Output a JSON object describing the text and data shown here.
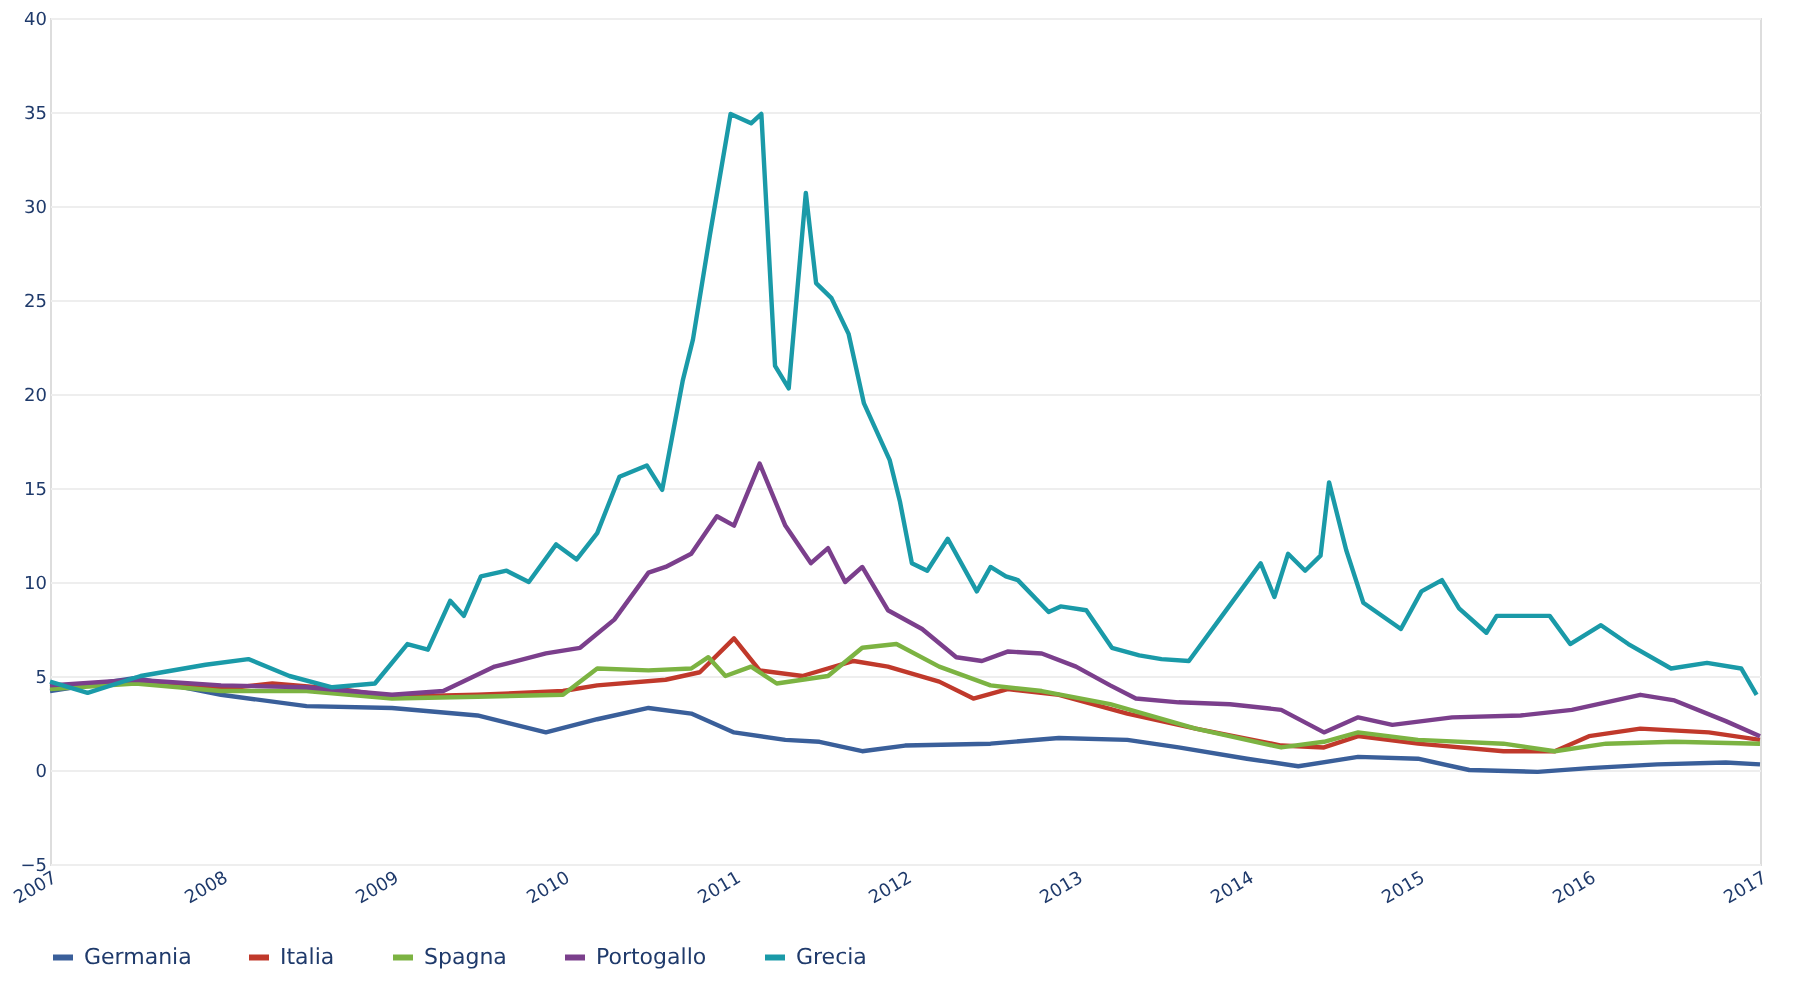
{
  "chart_data": {
    "type": "line",
    "xlim": [
      2007,
      2017
    ],
    "xticks": [
      2007,
      2008,
      2009,
      2010,
      2011,
      2012,
      2013,
      2014,
      2015,
      2016,
      2017
    ],
    "ylim": [
      -5,
      40
    ],
    "yticks": [
      -5,
      0,
      5,
      10,
      15,
      20,
      25,
      30,
      35,
      40
    ],
    "grid": "y",
    "legend": "bottom",
    "marker": "none",
    "line_style": "solid",
    "series": [
      {
        "name": "Germania",
        "color": "#3a5f9a",
        "x": [
          2007,
          2007.5,
          2008,
          2008.5,
          2009,
          2009.5,
          2009.9,
          2010.2,
          2010.5,
          2010.75,
          2011,
          2011.3,
          2011.5,
          2011.75,
          2012,
          2012.5,
          2012.9,
          2013.3,
          2013.6,
          2014,
          2014.3,
          2014.65,
          2015,
          2015.3,
          2015.7,
          2016,
          2016.4,
          2016.8,
          2017
        ],
        "values": [
          4.2,
          4.9,
          4.0,
          3.4,
          3.3,
          2.9,
          2.0,
          2.7,
          3.3,
          3.0,
          2.0,
          1.6,
          1.5,
          1.0,
          1.3,
          1.4,
          1.7,
          1.6,
          1.2,
          0.6,
          0.2,
          0.7,
          0.6,
          0.0,
          -0.1,
          0.1,
          0.3,
          0.4,
          0.3
        ]
      },
      {
        "name": "Italia",
        "color": "#c0392b",
        "x": [
          2007,
          2007.5,
          2008,
          2008.3,
          2008.7,
          2009,
          2009.5,
          2010,
          2010.2,
          2010.6,
          2010.8,
          2011,
          2011.15,
          2011.4,
          2011.7,
          2011.9,
          2012.2,
          2012.4,
          2012.6,
          2012.9,
          2013.3,
          2013.7,
          2014.2,
          2014.45,
          2014.65,
          2015,
          2015.5,
          2015.8,
          2016,
          2016.3,
          2016.7,
          2017
        ],
        "values": [
          4.4,
          4.7,
          4.3,
          4.6,
          4.3,
          3.9,
          4.0,
          4.2,
          4.5,
          4.8,
          5.2,
          7.0,
          5.3,
          5.0,
          5.8,
          5.5,
          4.7,
          3.8,
          4.3,
          4.0,
          3.0,
          2.2,
          1.3,
          1.2,
          1.8,
          1.4,
          1.0,
          1.0,
          1.8,
          2.2,
          2.0,
          1.6
        ]
      },
      {
        "name": "Spagna",
        "color": "#7cb342",
        "x": [
          2007,
          2007.5,
          2008,
          2008.5,
          2009,
          2009.5,
          2010,
          2010.2,
          2010.5,
          2010.75,
          2010.85,
          2010.95,
          2011.1,
          2011.25,
          2011.55,
          2011.75,
          2011.95,
          2012.2,
          2012.5,
          2012.8,
          2013.2,
          2013.7,
          2014.2,
          2014.45,
          2014.65,
          2015,
          2015.5,
          2015.8,
          2016.1,
          2016.5,
          2017
        ],
        "values": [
          4.3,
          4.6,
          4.2,
          4.2,
          3.8,
          3.9,
          4.0,
          5.4,
          5.3,
          5.4,
          6.0,
          5.0,
          5.5,
          4.6,
          5.0,
          6.5,
          6.7,
          5.5,
          4.5,
          4.2,
          3.5,
          2.2,
          1.2,
          1.5,
          2.0,
          1.6,
          1.4,
          1.0,
          1.4,
          1.5,
          1.4
        ]
      },
      {
        "name": "Portogallo",
        "color": "#7b3f8c",
        "x": [
          2007,
          2007.5,
          2008,
          2008.5,
          2009,
          2009.3,
          2009.6,
          2009.9,
          2010.1,
          2010.3,
          2010.5,
          2010.6,
          2010.75,
          2010.9,
          2011,
          2011.15,
          2011.3,
          2011.45,
          2011.55,
          2011.65,
          2011.75,
          2011.9,
          2012.1,
          2012.3,
          2012.45,
          2012.6,
          2012.8,
          2013,
          2013.2,
          2013.35,
          2013.6,
          2013.9,
          2014.2,
          2014.45,
          2014.65,
          2014.85,
          2015.2,
          2015.6,
          2015.9,
          2016.3,
          2016.5,
          2016.8,
          2017
        ],
        "values": [
          4.5,
          4.8,
          4.5,
          4.4,
          4.0,
          4.2,
          5.5,
          6.2,
          6.5,
          8.0,
          10.5,
          10.8,
          11.5,
          13.5,
          13.0,
          16.3,
          13.0,
          11.0,
          11.8,
          10.0,
          10.8,
          8.5,
          7.5,
          6.0,
          5.8,
          6.3,
          6.2,
          5.5,
          4.5,
          3.8,
          3.6,
          3.5,
          3.2,
          2.0,
          2.8,
          2.4,
          2.8,
          2.9,
          3.2,
          4.0,
          3.7,
          2.6,
          1.8
        ]
      },
      {
        "name": "Grecia",
        "color": "#1a9aa8",
        "x": [
          2007,
          2007.22,
          2007.53,
          2007.91,
          2008.16,
          2008.4,
          2008.65,
          2008.9,
          2009.09,
          2009.21,
          2009.34,
          2009.42,
          2009.52,
          2009.67,
          2009.8,
          2009.96,
          2010.08,
          2010.2,
          2010.33,
          2010.49,
          2010.58,
          2010.7,
          2010.76,
          2010.86,
          2010.98,
          2011.1,
          2011.16,
          2011.24,
          2011.32,
          2011.42,
          2011.48,
          2011.57,
          2011.67,
          2011.76,
          2011.91,
          2011.97,
          2012.04,
          2012.13,
          2012.25,
          2012.42,
          2012.5,
          2012.59,
          2012.66,
          2012.84,
          2012.91,
          2013.06,
          2013.21,
          2013.37,
          2013.5,
          2013.66,
          2013.87,
          2014.08,
          2014.16,
          2014.24,
          2014.34,
          2014.43,
          2014.48,
          2014.58,
          2014.68,
          2014.9,
          2015.02,
          2015.14,
          2015.24,
          2015.4,
          2015.46,
          2015.77,
          2015.89,
          2016.07,
          2016.23,
          2016.48,
          2016.69,
          2016.89,
          2016.98
        ],
        "values": [
          4.7,
          4.1,
          5.0,
          5.6,
          5.9,
          5.0,
          4.4,
          4.6,
          6.7,
          6.4,
          9.0,
          8.2,
          10.3,
          10.6,
          10.0,
          12.0,
          11.2,
          12.6,
          15.6,
          16.2,
          14.9,
          20.7,
          22.9,
          28.5,
          34.9,
          34.4,
          34.9,
          21.5,
          20.3,
          30.7,
          25.9,
          25.1,
          23.2,
          19.5,
          16.5,
          14.3,
          11.0,
          10.6,
          12.3,
          9.5,
          10.8,
          10.3,
          10.1,
          8.4,
          8.7,
          8.5,
          6.5,
          6.1,
          5.9,
          5.8,
          8.4,
          11.0,
          9.2,
          11.5,
          10.6,
          11.4,
          15.3,
          11.7,
          8.9,
          7.5,
          9.5,
          10.1,
          8.6,
          7.3,
          8.2,
          8.2,
          6.7,
          7.7,
          6.7,
          5.4,
          5.7,
          5.4,
          4.0
        ]
      }
    ]
  }
}
